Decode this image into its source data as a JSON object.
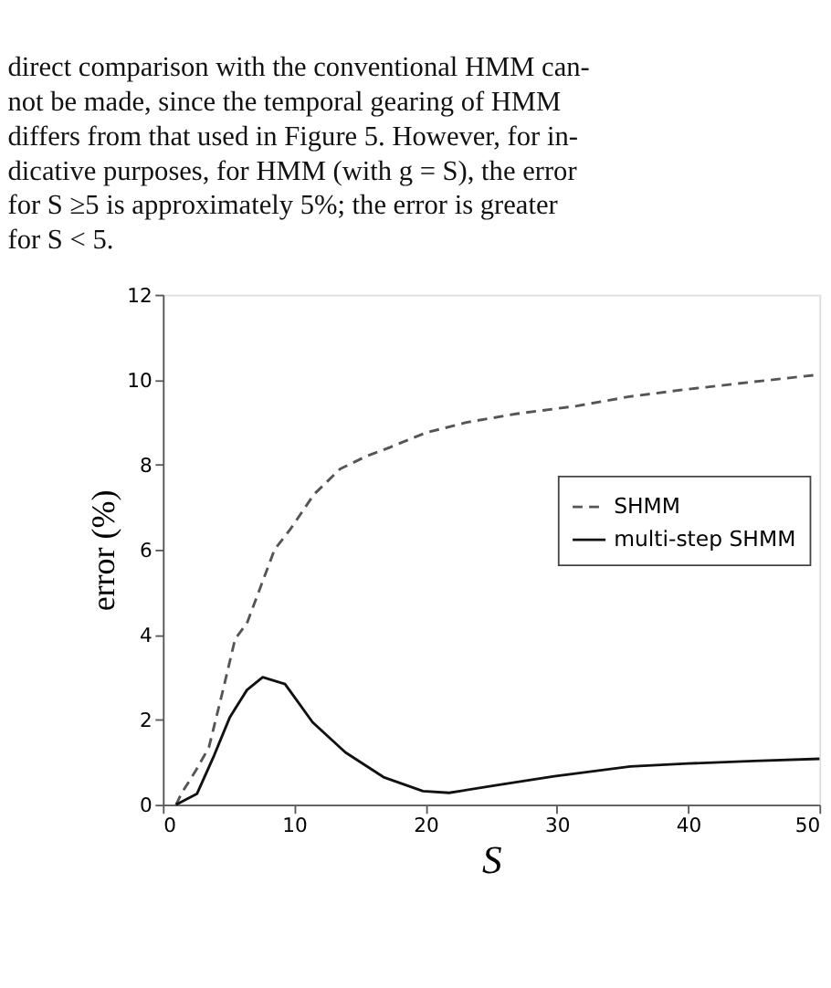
{
  "chart_data": {
    "type": "line",
    "xlabel": "S",
    "ylabel": "error (%)",
    "annotations": [
      "direct comparison with the conventional HMM can-",
      "not be made, since the temporal gearing of HMM",
      "differs from that used in Figure 5. However, for in-",
      "dicative purposes, for HMM (with g = S), the error",
      "for S ≥5 is approximately 5%; the error is greater",
      "for S < 5."
    ],
    "xlim": [
      0,
      50
    ],
    "xticks": [
      0,
      10,
      20,
      30,
      40,
      50
    ],
    "ylim": [
      0,
      12
    ],
    "yticks": [
      0,
      2,
      4,
      6,
      8,
      10,
      12
    ],
    "grid": false,
    "legend": "right",
    "marker": "none",
    "series": [
      {
        "name": "SHMM",
        "color": "#555555",
        "line_style": "dashed",
        "x": [
          1,
          1.4,
          2.5,
          3.5,
          4.5,
          5.5,
          6.4,
          8.5,
          9.7,
          11.5,
          13.5,
          15.5,
          17.3,
          20,
          23.2,
          27,
          31.5,
          35.5,
          39.8,
          45,
          50
        ],
        "values": [
          0,
          0.26,
          0.8,
          1.35,
          2.6,
          3.9,
          4.27,
          6.0,
          6.48,
          7.3,
          7.9,
          8.2,
          8.41,
          8.75,
          9.0,
          9.2,
          9.38,
          9.6,
          9.77,
          9.95,
          10.12
        ]
      },
      {
        "name": "multi-step SHMM",
        "color": "#111111",
        "line_style": "solid",
        "x": [
          1,
          2.6,
          3.9,
          5.1,
          6.4,
          7.6,
          9.3,
          11.4,
          13.9,
          16.8,
          19.8,
          21.8,
          25.2,
          29.8,
          35.6,
          40,
          45,
          50
        ],
        "values": [
          0,
          0.26,
          1.16,
          2.06,
          2.7,
          3.0,
          2.84,
          1.94,
          1.23,
          0.65,
          0.32,
          0.28,
          0.45,
          0.67,
          0.9,
          0.97,
          1.03,
          1.08
        ]
      }
    ]
  }
}
